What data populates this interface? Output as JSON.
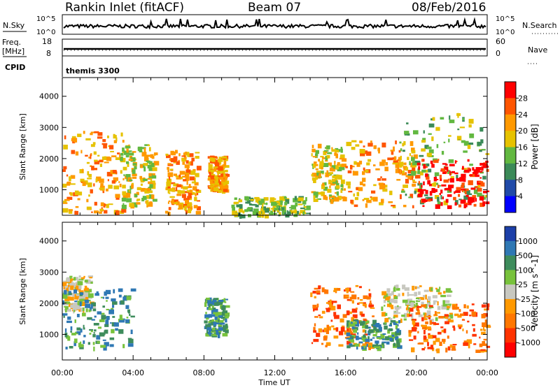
{
  "header": {
    "site": "Rankin Inlet (fitACF)",
    "beam": "Beam 07",
    "date": "08/Feb/2016"
  },
  "top_panels": {
    "nsky_label": "N.Sky",
    "nsky_ticks": [
      "10^5",
      "10^0"
    ],
    "nsearch_label": "N.Search",
    "nsearch_ticks": [
      "10^5",
      "10^0"
    ],
    "freq_label_1": "Freq.",
    "freq_label_2": "[MHz]",
    "freq_ticks": [
      "18",
      "8"
    ],
    "nave_label": "Nave",
    "nave_ticks": [
      "60",
      "0"
    ],
    "cpid_label": "CPID",
    "cpid_value": "themis 3300"
  },
  "chart_data": [
    {
      "type": "heatmap",
      "name": "power",
      "ylabel": "Slant Range [km]",
      "xlabel": "Time UT",
      "yticks": [
        "4000",
        "3000",
        "2000",
        "1000"
      ],
      "ylim": [
        180,
        4600
      ],
      "colorbar_title": "Power [dB]",
      "colorbar_labels": [
        "28",
        "24",
        "20",
        "16",
        "12",
        "8",
        "4"
      ],
      "colorbar_colors": [
        "#ff0000",
        "#ff5500",
        "#ff9900",
        "#e6c200",
        "#62b840",
        "#3b8a58",
        "#204aa8",
        "#0000ff"
      ],
      "echo_regions": [
        {
          "t0": 0.0,
          "t1": 3.5,
          "r0": 300,
          "r1": 2900,
          "level": 2
        },
        {
          "t0": 3.2,
          "t1": 5.2,
          "r0": 500,
          "r1": 2500,
          "level": 3
        },
        {
          "t0": 5.8,
          "t1": 7.6,
          "r0": 250,
          "r1": 2300,
          "level": 2
        },
        {
          "t0": 8.2,
          "t1": 9.2,
          "r0": 1000,
          "r1": 2100,
          "level": 2
        },
        {
          "t0": 9.5,
          "t1": 13.8,
          "r0": 200,
          "r1": 800,
          "level": 4
        },
        {
          "t0": 14.0,
          "t1": 15.8,
          "r0": 700,
          "r1": 2500,
          "level": 3
        },
        {
          "t0": 15.8,
          "t1": 20.0,
          "r0": 500,
          "r1": 2600,
          "level": 2
        },
        {
          "t0": 19.0,
          "t1": 23.9,
          "r0": 600,
          "r1": 3500,
          "level": 4
        },
        {
          "t0": 20.0,
          "t1": 24.0,
          "r0": 500,
          "r1": 2000,
          "level": 0
        }
      ]
    },
    {
      "type": "heatmap",
      "name": "velocity",
      "ylabel": "Slant Range [km]",
      "xlabel": "Time UT",
      "yticks": [
        "4000",
        "3000",
        "2000",
        "1000"
      ],
      "ylim": [
        180,
        4600
      ],
      "colorbar_title": "Velocity [m s^-1]",
      "colorbar_labels": [
        "1000",
        "500",
        "100",
        "25",
        "-25",
        "-100",
        "-500",
        "-1000"
      ],
      "colorbar_colors": [
        "#1c3fa8",
        "#2f78b4",
        "#3e8c5c",
        "#78c23c",
        "#c8c8c0",
        "#ff9900",
        "#ff7700",
        "#ff3300",
        "#ff0000"
      ],
      "echo_regions": [
        {
          "t0": 0.0,
          "t1": 1.6,
          "r0": 1800,
          "r1": 2900,
          "level": 4
        },
        {
          "t0": 0.0,
          "t1": 4.0,
          "r0": 600,
          "r1": 2500,
          "level": 2
        },
        {
          "t0": 8.0,
          "t1": 9.2,
          "r0": 1000,
          "r1": 2200,
          "level": 2
        },
        {
          "t0": 14.0,
          "t1": 17.5,
          "r0": 600,
          "r1": 2600,
          "level": 6
        },
        {
          "t0": 16.0,
          "t1": 19.0,
          "r0": 600,
          "r1": 1500,
          "level": 2
        },
        {
          "t0": 18.0,
          "t1": 22.0,
          "r0": 1500,
          "r1": 2600,
          "level": 4
        },
        {
          "t0": 19.5,
          "t1": 24.0,
          "r0": 500,
          "r1": 2000,
          "level": 6
        }
      ]
    }
  ],
  "x_axis": {
    "ticks": [
      "00:00",
      "04:00",
      "08:00",
      "12:00",
      "16:00",
      "20:00",
      "00:00"
    ],
    "title": "Time UT"
  }
}
